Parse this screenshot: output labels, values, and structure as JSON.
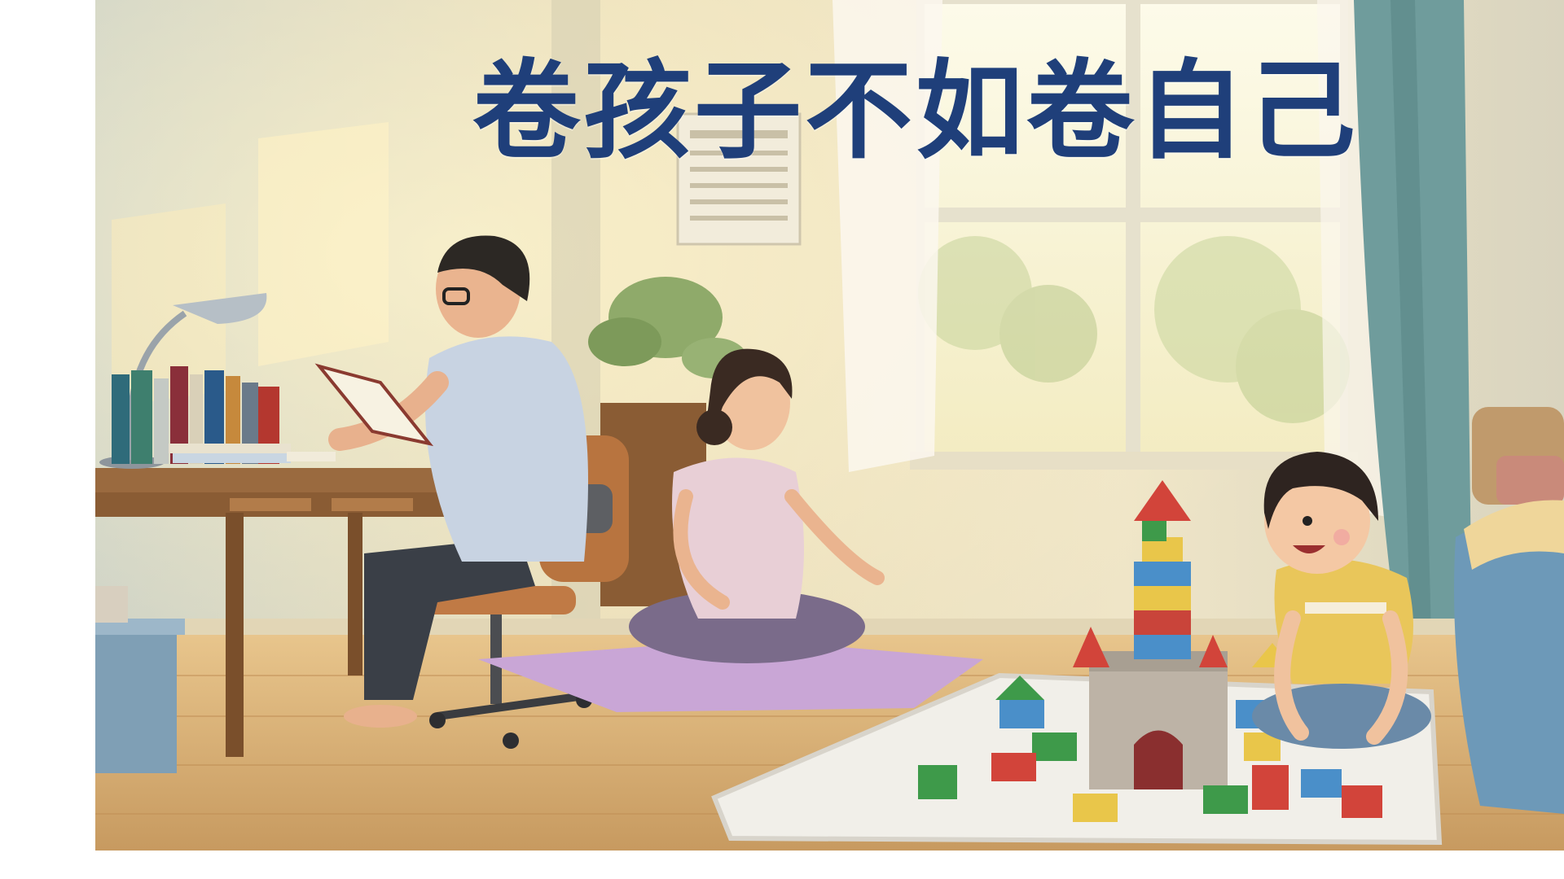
{
  "headline": {
    "text": "卷孩子不如卷自己",
    "color": "#1f3f7a"
  },
  "scene": {
    "subjects": [
      "father-reading",
      "mother-meditating",
      "child-playing-blocks"
    ],
    "palette": {
      "wall": "#e9dcb8",
      "floor": "#d9b27a",
      "window-glow": "#fbf6dc",
      "curtain": "#6f9c9c",
      "yoga-mat": "#c9a6d6",
      "rug": "#f1efe9"
    }
  }
}
